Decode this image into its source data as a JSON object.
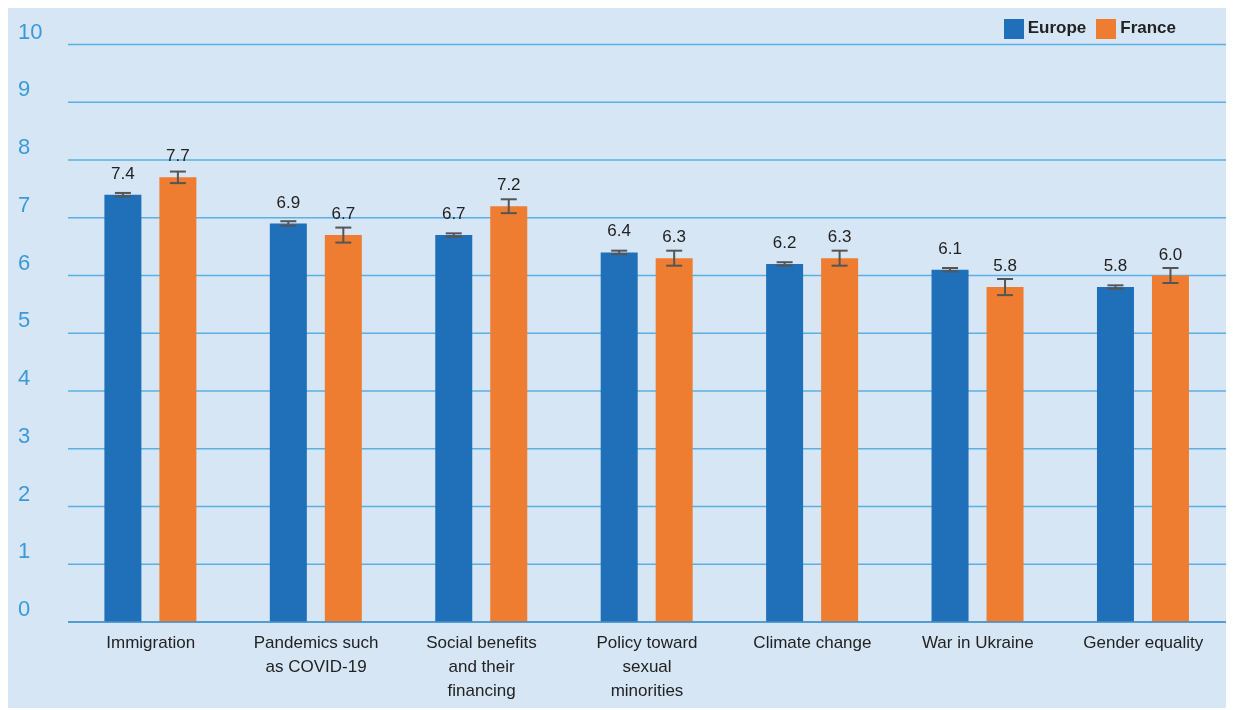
{
  "chart_data": {
    "type": "bar",
    "categories": [
      "Immigration",
      "Pandemics such as COVID-19",
      "Social benefits and their financing",
      "Policy toward sexual minorities",
      "Climate change",
      "War in Ukraine",
      "Gender equality"
    ],
    "series": [
      {
        "name": "Europe",
        "color": "#1f70b9",
        "values": [
          7.4,
          6.9,
          6.7,
          6.4,
          6.2,
          6.1,
          5.8
        ],
        "errors": [
          0.03,
          0.04,
          0.03,
          0.03,
          0.03,
          0.03,
          0.03
        ],
        "value_labels": [
          "7.4",
          "6.9",
          "6.7",
          "6.4",
          "6.2",
          "6.1",
          "5.8"
        ]
      },
      {
        "name": "France",
        "color": "#ef7d31",
        "values": [
          7.7,
          6.7,
          7.2,
          6.3,
          6.3,
          5.8,
          6.0
        ],
        "errors": [
          0.1,
          0.13,
          0.12,
          0.13,
          0.13,
          0.14,
          0.13
        ],
        "value_labels": [
          "7.7",
          "6.7",
          "7.2",
          "6.3",
          "6.3",
          "5.8",
          "6.0"
        ]
      }
    ],
    "ylim": [
      0,
      10
    ],
    "yticks": [
      0,
      1,
      2,
      3,
      4,
      5,
      6,
      7,
      8,
      9,
      10
    ],
    "grid": "y",
    "legend": "top right"
  }
}
